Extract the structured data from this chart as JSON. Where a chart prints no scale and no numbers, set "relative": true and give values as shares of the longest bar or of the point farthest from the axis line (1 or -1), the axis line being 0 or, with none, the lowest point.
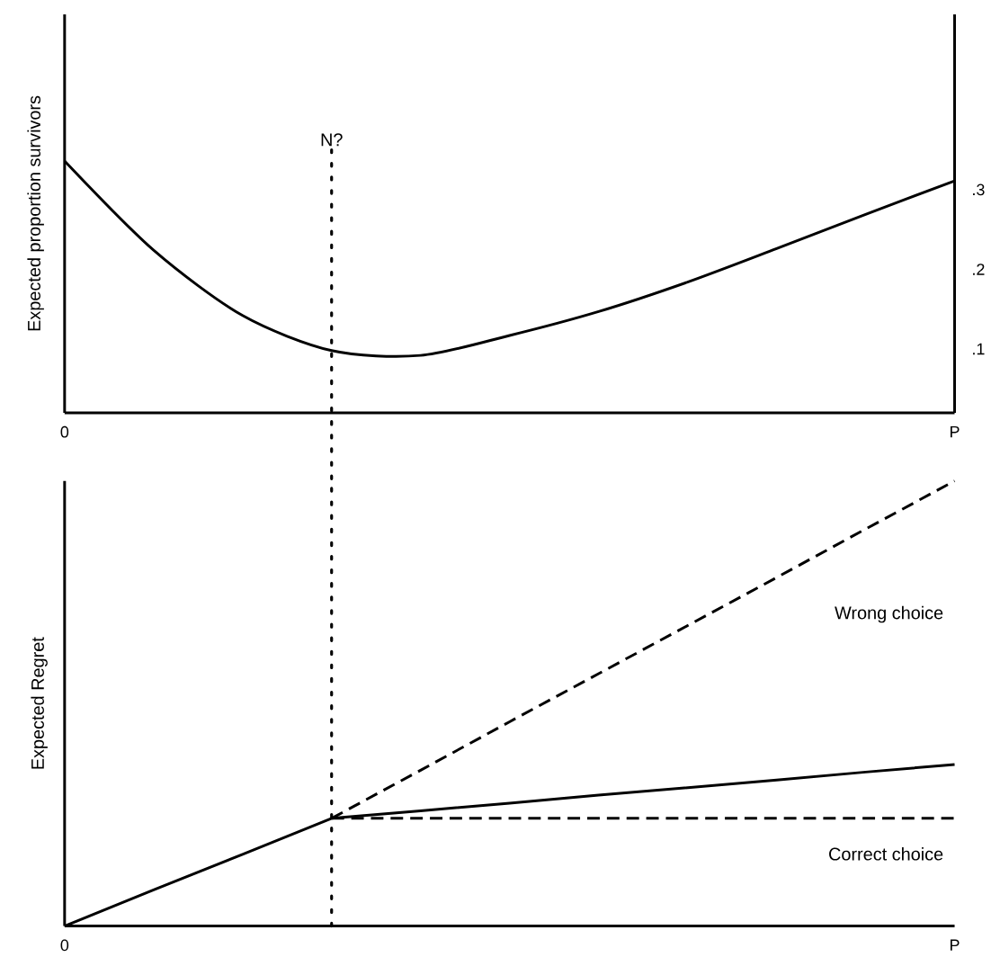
{
  "chart_data": [
    {
      "type": "line",
      "ylabel": "Expected proportion survivors",
      "categories": [
        "0",
        null,
        null,
        null,
        null,
        null,
        null,
        null,
        null,
        null,
        "P"
      ],
      "ylim": [
        0.02,
        0.52
      ],
      "yticks": [
        {
          "value": 0.1,
          "label": ".1"
        },
        {
          "value": 0.2,
          "label": ".2"
        },
        {
          "value": 0.3,
          "label": ".3"
        }
      ],
      "marker": "none",
      "line_style": "solid",
      "series": [
        {
          "color": "#000000",
          "values": [
            0.336,
            0.224,
            0.142,
            0.098,
            0.092,
            0.117,
            0.147,
            0.184,
            0.226,
            0.269,
            0.311
          ]
        }
      ],
      "annotations": [
        "N?"
      ]
    },
    {
      "type": "line",
      "relative": true,
      "ylabel": "Expected Regret",
      "categories": [
        "0",
        null,
        null,
        null,
        null,
        null,
        null,
        null,
        null,
        null,
        "P"
      ],
      "marker": "none",
      "series": [
        {
          "color": "#000000",
          "line_style": "solid",
          "values": [
            0,
            0.081,
            0.161,
            0.242,
            0.259,
            0.276,
            0.294,
            0.311,
            0.328,
            0.346,
            0.363
          ]
        },
        {
          "name": "Wrong choice",
          "color": "#000000",
          "line_style": "dashed",
          "values": [
            null,
            null,
            null,
            0.242,
            0.35,
            0.459,
            0.567,
            0.675,
            0.783,
            0.892,
            1
          ]
        },
        {
          "name": "Correct choice",
          "color": "#000000",
          "line_style": "dashed",
          "values": [
            null,
            null,
            null,
            0.242,
            0.242,
            0.242,
            0.242,
            0.242,
            0.242,
            0.242,
            0.242
          ]
        }
      ]
    }
  ]
}
